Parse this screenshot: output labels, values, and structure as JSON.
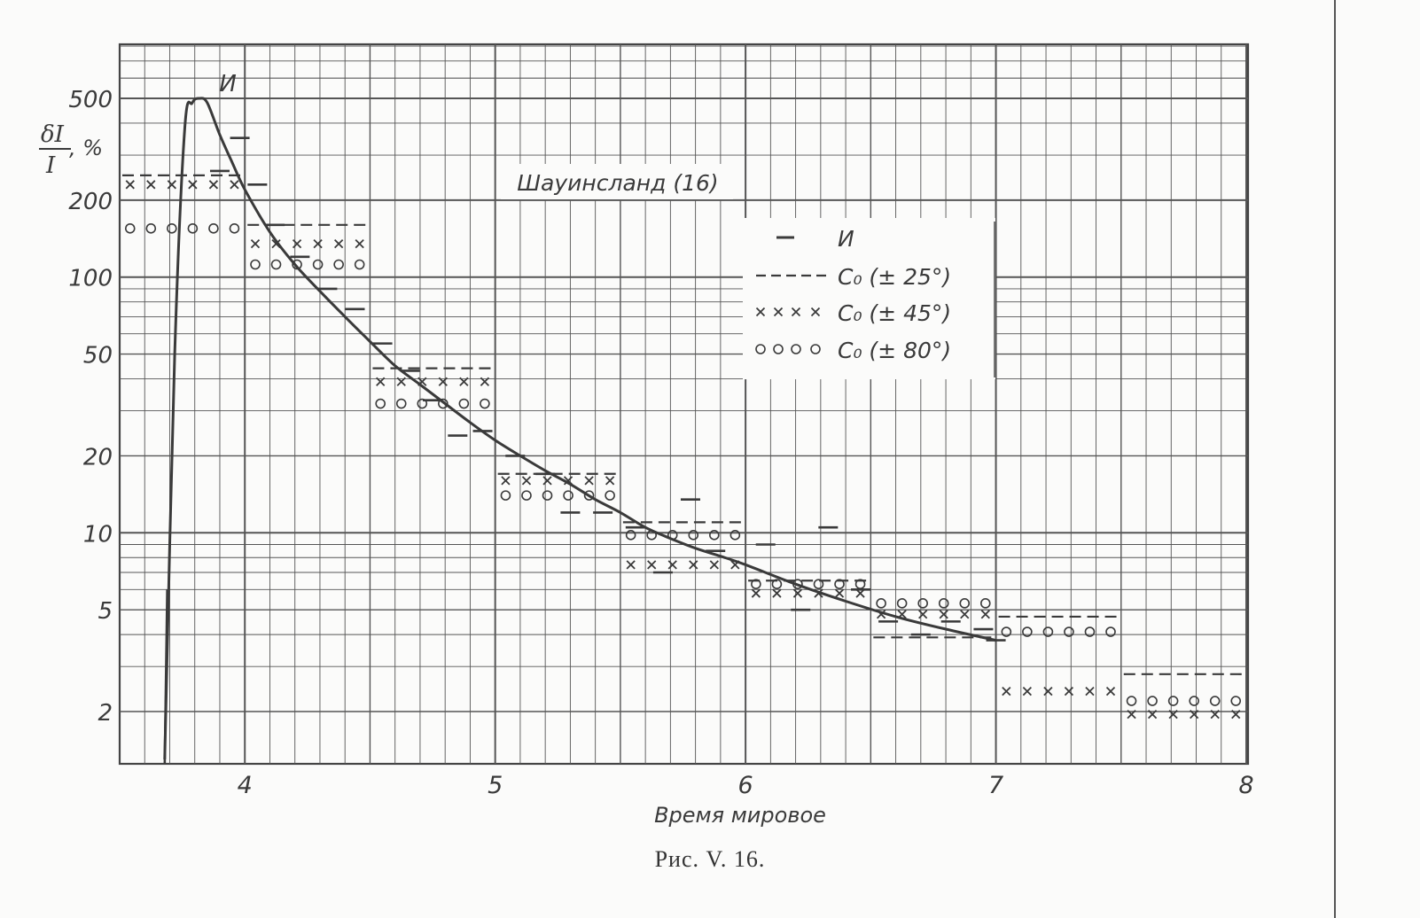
{
  "chart_data": {
    "type": "line",
    "title": "Шауинсланд (16)",
    "caption": "Рис. V. 16.",
    "xlabel": "Время мировое",
    "ylabel": "δI/I, %",
    "ylabel_num": "δI",
    "ylabel_den": "I",
    "ylabel_unit": ", %",
    "x_scale": "linear",
    "y_scale": "log",
    "xlim": [
      3.5,
      8.0
    ],
    "ylim": [
      1.3,
      680
    ],
    "x_ticks": [
      4,
      5,
      6,
      7,
      8
    ],
    "x_tick_labels": [
      "4",
      "5",
      "6",
      "7",
      "8"
    ],
    "y_ticks": [
      2,
      5,
      10,
      20,
      50,
      100,
      200,
      500
    ],
    "y_tick_labels": [
      "2",
      "5",
      "10",
      "20",
      "50",
      "100",
      "200",
      "500"
    ],
    "grid": true,
    "legend_position": "center-right",
    "peak_label": "И",
    "legend": [
      {
        "symbol": "dash",
        "label": "И"
      },
      {
        "symbol": "dashed-line",
        "label": "C₀ (± 25°)"
      },
      {
        "symbol": "cross",
        "label": "C₀ (± 45°)"
      },
      {
        "symbol": "circle",
        "label": "C₀ (± 80°)"
      }
    ],
    "curve": {
      "name": "И",
      "x": [
        3.68,
        3.72,
        3.76,
        3.79,
        3.82,
        3.85,
        3.9,
        3.95,
        4.0,
        4.1,
        4.2,
        4.3,
        4.4,
        4.5,
        4.6,
        4.7,
        4.8,
        4.9,
        5.0,
        5.1,
        5.2,
        5.3,
        5.4,
        5.5,
        5.6,
        5.7,
        5.8,
        5.9,
        6.0,
        6.2,
        6.4,
        6.6,
        6.8,
        7.0
      ],
      "y": [
        1.3,
        50,
        380,
        480,
        500,
        480,
        360,
        280,
        220,
        150,
        112,
        88,
        70,
        56,
        45,
        38,
        32,
        27,
        23,
        20,
        17.5,
        15.5,
        13.5,
        12,
        10.5,
        9.5,
        8.7,
        8.1,
        7.5,
        6.3,
        5.4,
        4.7,
        4.2,
        3.8
      ]
    },
    "series": [
      {
        "name": "И",
        "marker": "dash",
        "x": [
          3.9,
          3.98,
          4.05,
          4.12,
          4.22,
          4.33,
          4.44,
          4.55,
          4.66,
          4.75,
          4.85,
          4.95,
          5.08,
          5.2,
          5.3,
          5.43,
          5.56,
          5.67,
          5.78,
          5.88,
          6.08,
          6.22,
          6.33,
          6.46,
          6.57,
          6.7,
          6.82,
          6.95,
          7.0
        ],
        "y": [
          260,
          350,
          230,
          160,
          120,
          90,
          75,
          55,
          43,
          33,
          24,
          25,
          20,
          17,
          12,
          12,
          10.5,
          7,
          13.5,
          8.5,
          9,
          5,
          10.5,
          6,
          4.5,
          4,
          4.5,
          4.2,
          3.8
        ]
      },
      {
        "name": "C₀ (± 25°)",
        "marker": "dashed-line",
        "segments": [
          {
            "x": [
              3.5,
              4.0
            ],
            "y": 250
          },
          {
            "x": [
              4.0,
              4.5
            ],
            "y": 160
          },
          {
            "x": [
              4.5,
              5.0
            ],
            "y": 44
          },
          {
            "x": [
              5.0,
              5.5
            ],
            "y": 17
          },
          {
            "x": [
              5.5,
              6.0
            ],
            "y": 11
          },
          {
            "x": [
              6.0,
              6.5
            ],
            "y": 6.5
          },
          {
            "x": [
              6.5,
              7.0
            ],
            "y": 3.9
          },
          {
            "x": [
              7.0,
              7.5
            ],
            "y": 4.7
          },
          {
            "x": [
              7.5,
              8.0
            ],
            "y": 2.8
          }
        ]
      },
      {
        "name": "C₀ (± 45°)",
        "marker": "cross",
        "segments": [
          {
            "x": [
              3.5,
              4.0
            ],
            "y": 230
          },
          {
            "x": [
              4.0,
              4.5
            ],
            "y": 135
          },
          {
            "x": [
              4.5,
              5.0
            ],
            "y": 39
          },
          {
            "x": [
              5.0,
              5.5
            ],
            "y": 16
          },
          {
            "x": [
              5.5,
              6.0
            ],
            "y": 7.5
          },
          {
            "x": [
              6.0,
              6.5
            ],
            "y": 5.8
          },
          {
            "x": [
              6.5,
              7.0
            ],
            "y": 4.8
          },
          {
            "x": [
              7.0,
              7.5
            ],
            "y": 2.4
          },
          {
            "x": [
              7.5,
              8.0
            ],
            "y": 1.95
          }
        ]
      },
      {
        "name": "C₀ (± 80°)",
        "marker": "circle",
        "segments": [
          {
            "x": [
              3.5,
              4.0
            ],
            "y": 155
          },
          {
            "x": [
              4.0,
              4.5
            ],
            "y": 112
          },
          {
            "x": [
              4.5,
              5.0
            ],
            "y": 32
          },
          {
            "x": [
              5.0,
              5.5
            ],
            "y": 14
          },
          {
            "x": [
              5.5,
              6.0
            ],
            "y": 9.8
          },
          {
            "x": [
              6.0,
              6.5
            ],
            "y": 6.3
          },
          {
            "x": [
              6.5,
              7.0
            ],
            "y": 5.3
          },
          {
            "x": [
              7.0,
              7.5
            ],
            "y": 4.1
          },
          {
            "x": [
              7.5,
              8.0
            ],
            "y": 2.2
          }
        ]
      }
    ]
  },
  "colors": {
    "ink": "#3a3a3a",
    "grid": "#555555",
    "paper": "#fbfbfa"
  }
}
